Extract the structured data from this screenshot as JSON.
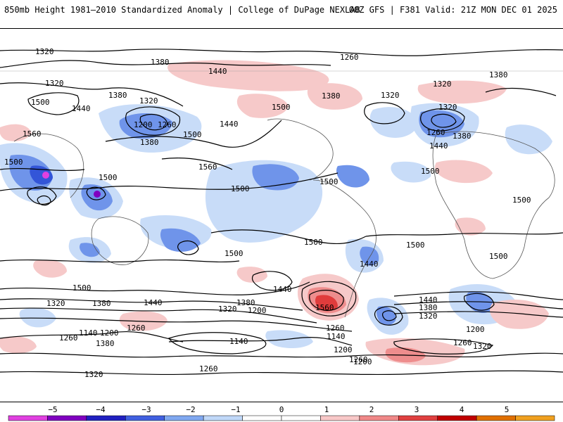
{
  "header": {
    "left_title": "850mb Height 1981–2010 Standardized Anomaly | College of DuPage NEXLAB",
    "right_title": "00Z GFS | F381 Valid: 21Z MON DEC 01 2025"
  },
  "contour_labels": [
    {
      "text": "1320",
      "name": "contour-1320-pacific-north"
    },
    {
      "text": "1380",
      "name": "contour-1380-siberia"
    },
    {
      "text": "1440",
      "name": "contour-1440-north-pacific"
    },
    {
      "text": "1260",
      "name": "contour-1260-greenland"
    },
    {
      "text": "1380",
      "name": "contour-1380-europe"
    },
    {
      "text": "1320",
      "name": "contour-1320-west"
    },
    {
      "text": "1380",
      "name": "contour-1380-west-pacific"
    },
    {
      "text": "1320",
      "name": "contour-1320-kamchatka"
    },
    {
      "text": "1380",
      "name": "contour-1380-canada"
    },
    {
      "text": "1320",
      "name": "contour-1320-iceland"
    },
    {
      "text": "1320",
      "name": "contour-1320-europe-east"
    },
    {
      "text": "1500",
      "name": "contour-1500-china"
    },
    {
      "text": "1440",
      "name": "contour-1440-east-asia"
    },
    {
      "text": "1200",
      "name": "contour-1200-aleutian-low"
    },
    {
      "text": "1260",
      "name": "contour-1260-aleutian"
    },
    {
      "text": "1500",
      "name": "contour-1500-hudson"
    },
    {
      "text": "1320",
      "name": "contour-1320-scandinavia"
    },
    {
      "text": "1260",
      "name": "contour-1260-russia"
    },
    {
      "text": "1380",
      "name": "contour-1380-russia"
    },
    {
      "text": "1560",
      "name": "contour-1560-asia"
    },
    {
      "text": "1500",
      "name": "contour-1500-pacific"
    },
    {
      "text": "1440",
      "name": "contour-1440-gulf-alaska"
    },
    {
      "text": "1380",
      "name": "contour-1380-pacific-mid"
    },
    {
      "text": "1500",
      "name": "contour-1500-west-edge"
    },
    {
      "text": "1440",
      "name": "contour-1440-europe"
    },
    {
      "text": "1560",
      "name": "contour-1560-pacific"
    },
    {
      "text": "1500",
      "name": "contour-1500-philippines"
    },
    {
      "text": "1500",
      "name": "contour-1500-mid-pacific"
    },
    {
      "text": "1500",
      "name": "contour-1500-caribbean"
    },
    {
      "text": "1500",
      "name": "contour-1500-atlantic"
    },
    {
      "text": "1500",
      "name": "contour-1500-africa"
    },
    {
      "text": "1500",
      "name": "contour-1500-south-pacific"
    },
    {
      "text": "1500",
      "name": "contour-1500-peru"
    },
    {
      "text": "1500",
      "name": "contour-1500-brazil"
    },
    {
      "text": "1440",
      "name": "contour-1440-argentina"
    },
    {
      "text": "1500",
      "name": "contour-1500-south-africa"
    },
    {
      "text": "1500",
      "name": "contour-1500-australia-west"
    },
    {
      "text": "1440",
      "name": "contour-1440-australia-south"
    },
    {
      "text": "1440",
      "name": "contour-1440-south-pacific"
    },
    {
      "text": "1320",
      "name": "contour-1320-southern-ocean-west"
    },
    {
      "text": "1380",
      "name": "contour-1380-southern-ocean-west"
    },
    {
      "text": "1380",
      "name": "contour-1380-south-pacific"
    },
    {
      "text": "1320",
      "name": "contour-1320-south-pacific"
    },
    {
      "text": "1200",
      "name": "contour-1200-south-pacific"
    },
    {
      "text": "1560",
      "name": "contour-1560-south-pacific-high"
    },
    {
      "text": "1440",
      "name": "contour-1440-south-atlantic"
    },
    {
      "text": "1380",
      "name": "contour-1380-south-atlantic"
    },
    {
      "text": "1320",
      "name": "contour-1320-south-atlantic"
    },
    {
      "text": "1260",
      "name": "contour-1260-southern-ocean"
    },
    {
      "text": "1140",
      "name": "contour-1140-southern-ocean"
    },
    {
      "text": "1200",
      "name": "contour-1200-southern-ocean"
    },
    {
      "text": "1200",
      "name": "contour-1200-indian-ocean"
    },
    {
      "text": "1260",
      "name": "contour-1260-indian-south"
    },
    {
      "text": "1260",
      "name": "contour-1260-west-south"
    },
    {
      "text": "1140",
      "name": "contour-1140-west-south"
    },
    {
      "text": "1200",
      "name": "contour-1200-west-south"
    },
    {
      "text": "1380",
      "name": "contour-1380-west-south"
    },
    {
      "text": "1140",
      "name": "contour-1140-antarctic"
    },
    {
      "text": "1260",
      "name": "contour-1260-antarctic-east"
    },
    {
      "text": "1260",
      "name": "contour-1260-antarctic-mid"
    },
    {
      "text": "1200",
      "name": "contour-1200-antarctic-east"
    },
    {
      "text": "1260",
      "name": "contour-1260-south-east"
    },
    {
      "text": "1320",
      "name": "contour-1320-south-east"
    },
    {
      "text": "1320",
      "name": "contour-1320-bottom"
    }
  ],
  "colorbar": {
    "ticks": [
      "−5",
      "−4",
      "−3",
      "−2",
      "−1",
      "0",
      "1",
      "2",
      "3",
      "4",
      "5"
    ],
    "colors": [
      "#e040e0",
      "#8000c0",
      "#2020c0",
      "#4060e0",
      "#80a8f0",
      "#c0d8f8",
      "#ffffff",
      "#ffffff",
      "#f8c8c8",
      "#f08888",
      "#e04040",
      "#c00000",
      "#e07000",
      "#f0a020"
    ]
  },
  "colors": {
    "cool_light": "#c8dcf8",
    "cool_mid": "#6f94ea",
    "cool_strong": "#3355d8",
    "warm_light": "#f6c9c9",
    "warm_mid": "#ee8d8d",
    "warm_strong": "#e03c3c"
  }
}
